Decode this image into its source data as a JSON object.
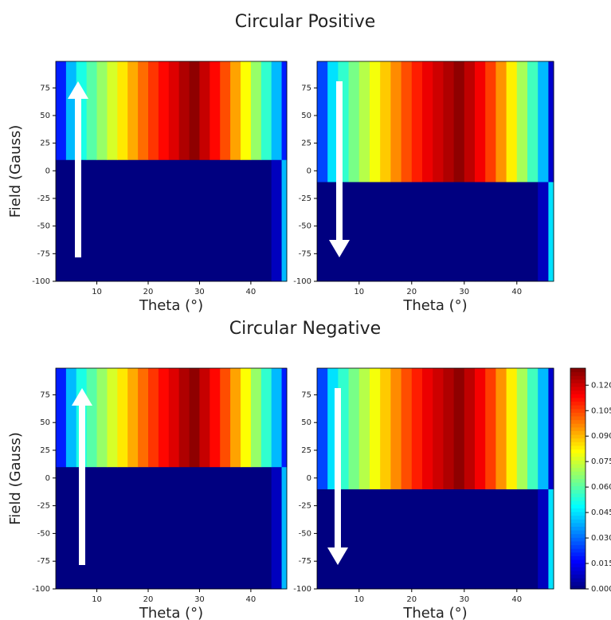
{
  "titles": [
    "Circular Positive",
    "Circular Negative"
  ],
  "colorbar": {
    "lim": [
      0,
      0.13
    ],
    "ticks": [
      {
        "value": 0,
        "label": "0.000"
      },
      {
        "value": 0.015,
        "label": "0.015"
      },
      {
        "value": 0.03,
        "label": "0.030"
      },
      {
        "value": 0.045,
        "label": "0.045"
      },
      {
        "value": 0.06,
        "label": "0.060"
      },
      {
        "value": 0.075,
        "label": "0.075"
      },
      {
        "value": 0.09,
        "label": "0.090"
      },
      {
        "value": 0.105,
        "label": "0.105"
      },
      {
        "value": 0.12,
        "label": "0.120"
      }
    ]
  },
  "chart_data": [
    {
      "type": "heatmap",
      "xlabel": "Theta (°)",
      "ylabel": "Field (Gauss)",
      "xlim": [
        2,
        47
      ],
      "ylim": [
        -100,
        99
      ],
      "xticks": [
        10,
        20,
        30,
        40
      ],
      "yticks": [
        -100,
        -75,
        -50,
        -25,
        0,
        25,
        50,
        75
      ],
      "x_bins": [
        2,
        4,
        6,
        8,
        10,
        12,
        14,
        16,
        18,
        20,
        22,
        24,
        26,
        28,
        30,
        32,
        34,
        36,
        38,
        40,
        42,
        44,
        46,
        47
      ],
      "y_bins": [
        -100,
        10,
        99
      ],
      "values": [
        [
          0,
          0,
          0,
          0,
          0,
          0,
          0,
          0,
          0,
          0,
          0,
          0,
          0,
          0,
          0,
          0,
          0,
          0,
          0,
          0,
          0,
          0.008,
          0.04
        ],
        [
          0.02,
          0.04,
          0.052,
          0.06,
          0.068,
          0.076,
          0.084,
          0.092,
          0.1,
          0.107,
          0.113,
          0.118,
          0.124,
          0.128,
          0.121,
          0.113,
          0.104,
          0.093,
          0.081,
          0.068,
          0.055,
          0.04,
          0.02
        ]
      ]
    },
    {
      "type": "heatmap",
      "xlabel": "Theta (°)",
      "xlim": [
        2,
        47
      ],
      "ylim": [
        -100,
        99
      ],
      "xticks": [
        10,
        20,
        30,
        40
      ],
      "yticks": [
        -100,
        -75,
        -50,
        -25,
        0,
        25,
        50,
        75
      ],
      "x_bins": [
        2,
        4,
        6,
        8,
        10,
        12,
        14,
        16,
        18,
        20,
        22,
        24,
        26,
        28,
        30,
        32,
        34,
        36,
        38,
        40,
        42,
        44,
        46,
        47
      ],
      "y_bins": [
        -100,
        -10,
        99
      ],
      "values": [
        [
          0,
          0,
          0,
          0,
          0,
          0,
          0,
          0,
          0,
          0,
          0,
          0,
          0,
          0,
          0,
          0,
          0,
          0,
          0,
          0,
          0,
          0.008,
          0.045
        ],
        [
          0.025,
          0.045,
          0.055,
          0.064,
          0.072,
          0.08,
          0.088,
          0.096,
          0.104,
          0.11,
          0.116,
          0.12,
          0.124,
          0.128,
          0.122,
          0.115,
          0.106,
          0.095,
          0.083,
          0.07,
          0.057,
          0.04,
          0.01
        ]
      ]
    },
    {
      "type": "heatmap",
      "xlabel": "Theta (°)",
      "ylabel": "Field (Gauss)",
      "xlim": [
        2,
        47
      ],
      "ylim": [
        -100,
        99
      ],
      "xticks": [
        10,
        20,
        30,
        40
      ],
      "yticks": [
        -100,
        -75,
        -50,
        -25,
        0,
        25,
        50,
        75
      ],
      "x_bins": [
        2,
        4,
        6,
        8,
        10,
        12,
        14,
        16,
        18,
        20,
        22,
        24,
        26,
        28,
        30,
        32,
        34,
        36,
        38,
        40,
        42,
        44,
        46,
        47
      ],
      "y_bins": [
        -100,
        10,
        99
      ],
      "values": [
        [
          0,
          0,
          0,
          0,
          0,
          0,
          0,
          0,
          0,
          0,
          0,
          0,
          0,
          0,
          0,
          0,
          0,
          0,
          0,
          0,
          0,
          0.008,
          0.04
        ],
        [
          0.02,
          0.04,
          0.052,
          0.06,
          0.068,
          0.076,
          0.084,
          0.092,
          0.1,
          0.107,
          0.113,
          0.118,
          0.124,
          0.128,
          0.121,
          0.113,
          0.104,
          0.093,
          0.081,
          0.068,
          0.055,
          0.04,
          0.02
        ]
      ]
    },
    {
      "type": "heatmap",
      "xlabel": "Theta (°)",
      "xlim": [
        2,
        47
      ],
      "ylim": [
        -100,
        99
      ],
      "xticks": [
        10,
        20,
        30,
        40
      ],
      "yticks": [
        -100,
        -75,
        -50,
        -25,
        0,
        25,
        50,
        75
      ],
      "x_bins": [
        2,
        4,
        6,
        8,
        10,
        12,
        14,
        16,
        18,
        20,
        22,
        24,
        26,
        28,
        30,
        32,
        34,
        36,
        38,
        40,
        42,
        44,
        46,
        47
      ],
      "y_bins": [
        -100,
        -10,
        99
      ],
      "values": [
        [
          0,
          0,
          0,
          0,
          0,
          0,
          0,
          0,
          0,
          0,
          0,
          0,
          0,
          0,
          0,
          0,
          0,
          0,
          0,
          0,
          0,
          0.008,
          0.045
        ],
        [
          0.025,
          0.045,
          0.055,
          0.064,
          0.072,
          0.08,
          0.088,
          0.096,
          0.104,
          0.11,
          0.116,
          0.12,
          0.124,
          0.128,
          0.122,
          0.115,
          0.106,
          0.095,
          0.083,
          0.07,
          0.057,
          0.04,
          0.01
        ]
      ]
    }
  ]
}
